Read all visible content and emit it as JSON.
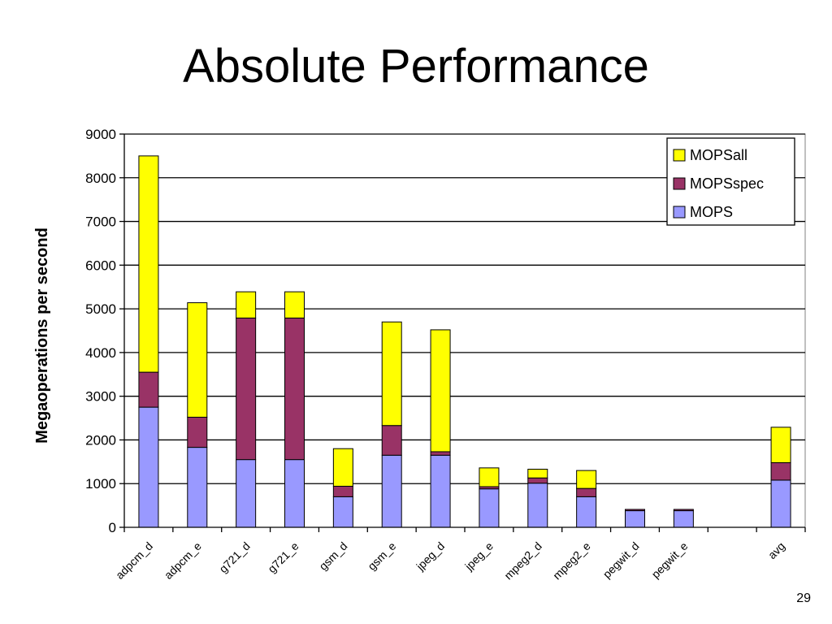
{
  "slide": {
    "title": "Absolute Performance",
    "page_number": "29"
  },
  "chart_data": {
    "type": "bar",
    "stacked": true,
    "title": "",
    "xlabel": "",
    "ylabel": "Megaoperations per second",
    "ylim": [
      0,
      9000
    ],
    "yticks": [
      0,
      1000,
      2000,
      3000,
      4000,
      5000,
      6000,
      7000,
      8000,
      9000
    ],
    "grid": true,
    "legend_position": "top-right",
    "categories": [
      "adpcm_d",
      "adpcm_e",
      "g721_d",
      "g721_e",
      "gsm_d",
      "gsm_e",
      "jpeg_d",
      "jpeg_e",
      "mpeg2_d",
      "mpeg2_e",
      "pegwit_d",
      "pegwit_e",
      "",
      "avg"
    ],
    "series": [
      {
        "name": "MOPS",
        "color": "#9999ff",
        "values": [
          2750,
          1830,
          1550,
          1550,
          700,
          1650,
          1650,
          880,
          1010,
          700,
          380,
          380,
          null,
          1080
        ]
      },
      {
        "name": "MOPSspec",
        "color": "#993366",
        "values": [
          800,
          690,
          3240,
          3240,
          240,
          680,
          80,
          50,
          120,
          190,
          30,
          30,
          null,
          400
        ]
      },
      {
        "name": "MOPSall",
        "color": "#ffff00",
        "values": [
          4950,
          2620,
          600,
          600,
          860,
          2370,
          2790,
          430,
          200,
          410,
          0,
          0,
          null,
          810
        ]
      }
    ],
    "legend_order": [
      "MOPSall",
      "MOPSspec",
      "MOPS"
    ]
  }
}
